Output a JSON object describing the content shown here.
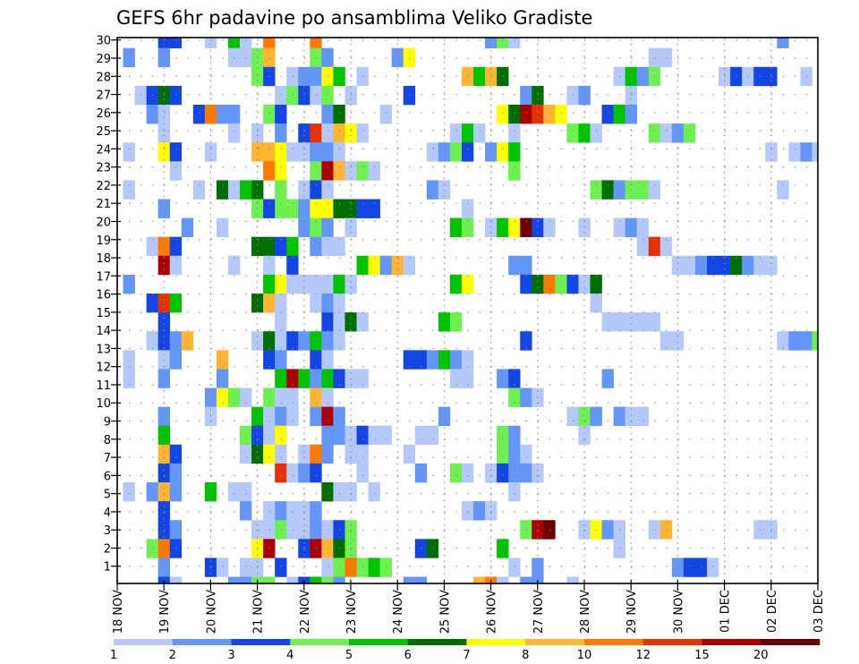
{
  "chart_data": {
    "type": "heatmap",
    "title": "GEFS 6hr padavine po ansamblima Veliko Gradiste",
    "xlabel": "",
    "ylabel": "",
    "x_step": "6hr",
    "x_ticks": [
      "18 NOV",
      "19 NOV",
      "20 NOV",
      "21 NOV",
      "22 NOV",
      "23 NOV",
      "24 NOV",
      "25 NOV",
      "26 NOV",
      "27 NOV",
      "28 NOV",
      "29 NOV",
      "30 NOV",
      "01 DEC",
      "02 DEC",
      "03 DEC"
    ],
    "y_ticks": [
      "1",
      "2",
      "3",
      "4",
      "5",
      "6",
      "7",
      "8",
      "9",
      "10",
      "11",
      "12",
      "13",
      "14",
      "15",
      "16",
      "17",
      "18",
      "19",
      "20",
      "21",
      "22",
      "23",
      "24",
      "25",
      "26",
      "27",
      "28",
      "29",
      "30"
    ],
    "grid": true,
    "colorbar": {
      "placement": "bottom",
      "labels": [
        "1",
        "2",
        "3",
        "4",
        "5",
        "6",
        "7",
        "8",
        "10",
        "12",
        "15",
        "20"
      ],
      "classes": [
        "a",
        "b",
        "c",
        "d",
        "e",
        "f",
        "g",
        "h",
        "i",
        "j",
        "k",
        "l"
      ],
      "colors": [
        "#b4c8fa",
        "#6496fa",
        "#1446e6",
        "#6ef050",
        "#00c400",
        "#006e00",
        "#ffff00",
        "#ffb432",
        "#ff7800",
        "#e63200",
        "#aa0000",
        "#6e0000"
      ]
    },
    "cell_rows_top_to_bottom": [
      "4c 5c 8a 10e 11a 13i 17i 32b 33d 34a 57b",
      "1b 4b 10a 11a 12d 13h 17d 18b 24b 25g 46a 47a",
      "12d 13c 15a 16b 17b 18g 19e 21a 30h 31e 32h 33f 43a 44e 45b 46d 52a 53c 54a 55c 56c 59a",
      "2a 3c 4f 5c 14a 15d 16c 17a 18d 20a 25c 35b 36f 39a 40b 44a",
      "3b 4a 7c 8i 9b 10b 13d 14c 18b 19f 23a 33g 34f 35k 36j 37h 38g 42c 43e 44b",
      "4a 10a 12a 14b 16c 17j 18a 19h 20g 21a 29a 30e 31a 34a 39d 40e 41a 46d 47a 48b 49d",
      "1a 4g 5c 8a 12h 13h 14g 15a 16a 17b 18b 19a 27a 28b 29d 30c 32b 33g 34e 56a 58a 59b 60a",
      "5a 13i 14g 17d 18k 19h 20a 21d 22a 34d",
      "1a 7a 9f 10a 11e 12f 14d 16a 17c 18a 27b 28a 41d 42f 43b 44d 45d 46a 57a",
      "4b 12d 13c 14d 15d 16b 17g 18g 19f 20f 21c 22c 30a",
      "6b 9a 16b 17d 18b 20a 29e 30d 32a 33e 34g 35l 36c 37a 40a 43a 44b 45a",
      "3a 4i 5c 12f 13f 14c 15e 17b 18a 19a 45a 46j 47a",
      "4k 5a 10a 13a 15c 21e 22g 23b 24h 25a 34b 35b 48a 49a 50b 51c 52c 53f 54b 55a 56a",
      "1b 13e 14g 15a 16a 17a 18a 19e 20a 29e 30g 35c 36f 37i 38d 39c 40a 41f",
      "3c 4j 5e 12f 13h 14a 17a 18b 19a 41a",
      "4c 14a 18c 19a 20f 21a 28e 29d 42a 43a 44a 45a 46a",
      "3a 4c 5b 6h 12a 13f 14a 15c 16b 17e 18b 19a 35c 47a 48a 57a 58b 59b 60d",
      "1a 4a 5b 9h 13c 14b 17c 18a 25c 26c 27b 28e 29b 30a",
      "1a 4b 9b 14e 15k 16e 17b 18e 19c 20a 21a 29a 30a 33b 34c 42b",
      "8b 9g 10d 11a 13d 14a 15a 17h 18a 34d 35b 36a",
      "4b 8a 12e 13a 14b 15a 17b 18k 19b 28b 39a 40d 41b 43b 44a 45a",
      "4e 11d 12c 13a 14g 18b 19b 20a 21c 22a 23a 26a 27a 33d 34b 40a",
      "4h 5c 11a 12f 13g 14a 16a 17i 18b 20a 21a 25a 33d 34b 35a",
      "4c 5b 14j 15a 16b 17c 21a 26b 29d 30a 32a 33c 34b 35b 36a",
      "1a 3b 4h 5b 8e 10a 11a 18f 19a 20a 22a 34a",
      "4c 11b 13a 14b 15a 16a 17b 30a 31b 32a",
      "4c 5b 12a 13a 14d 15a 16a 17b 18a 19c 20d 35d 36k 37l 40a 41g 42b 43a 46a 47h 55a 56a",
      "3d 4i 5c 12g 13k 16c 17k 18h 19f 20d 26c 27f 33e 43a",
      "4b 8c 9a 11a 12a 14c 18a 19d 20i 21d 22e 23d 34a 36b 48b 49c 50c 51a",
      "4c 5a 10b 11b 12d 13d 15a 16c 17e 18d 19b 25b 26b 31h 32i 33a 35b 36b 39a"
    ]
  }
}
